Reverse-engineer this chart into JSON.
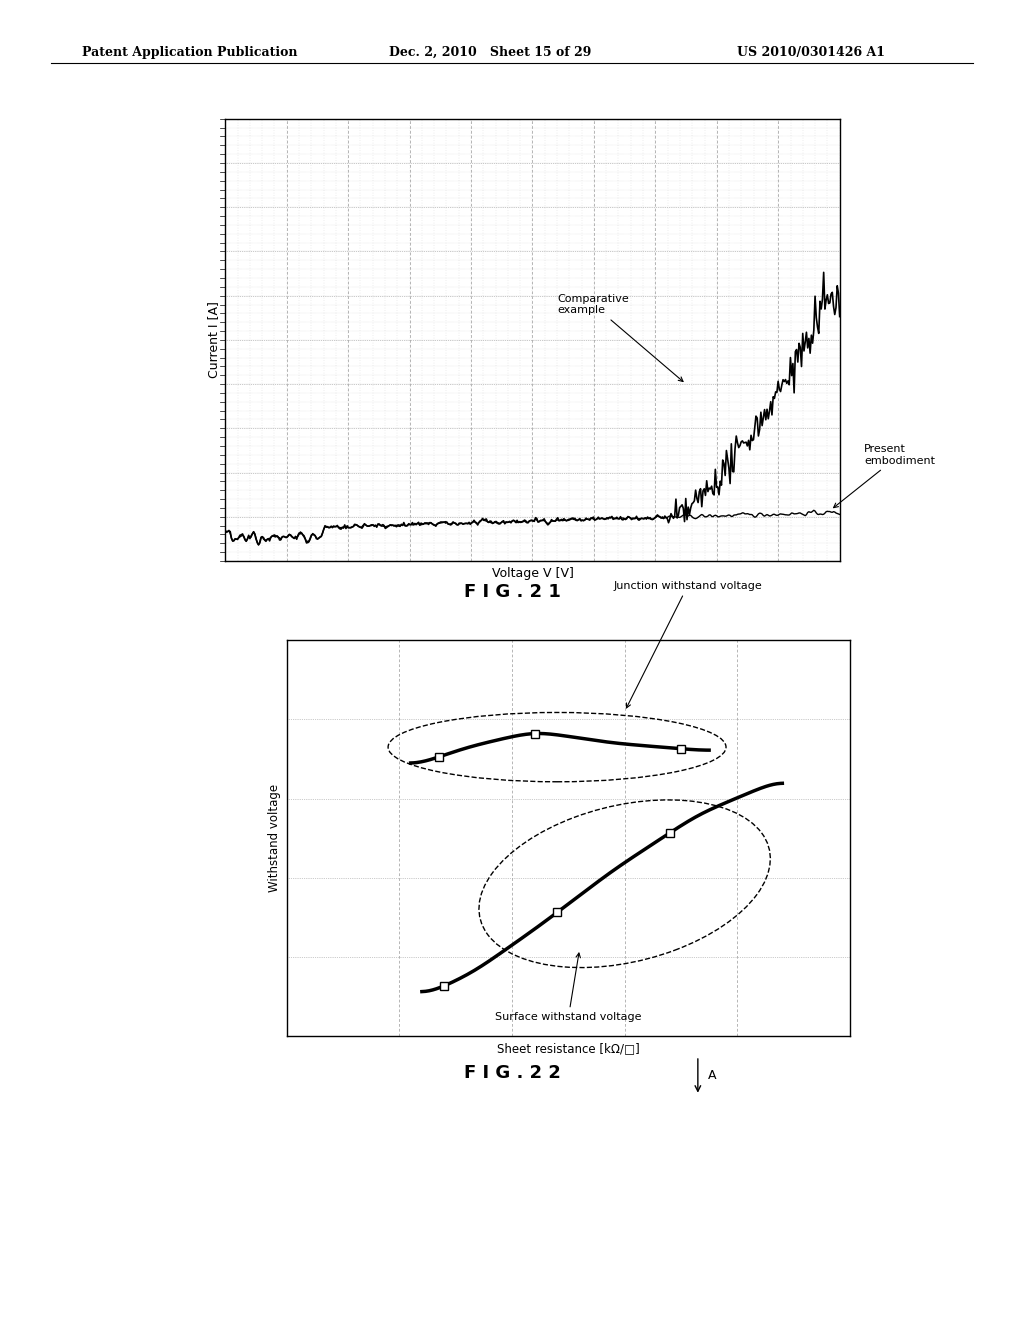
{
  "header_left": "Patent Application Publication",
  "header_mid": "Dec. 2, 2010   Sheet 15 of 29",
  "header_right": "US 2010/0301426 A1",
  "fig21_xlabel": "Voltage V [V]",
  "fig21_ylabel": "Current I [A]",
  "fig21_label": "F I G . 2 1",
  "fig22_xlabel": "Sheet resistance [kΩ/□]",
  "fig22_ylabel": "Withstand voltage",
  "fig22_label": "F I G . 2 2",
  "fig22_annotation1": "Junction withstand voltage",
  "fig22_annotation2": "Surface withstand voltage",
  "fig22_arrow_A": "A",
  "background_color": "#ffffff",
  "grid_color": "#aaaaaa",
  "line_color": "#000000"
}
